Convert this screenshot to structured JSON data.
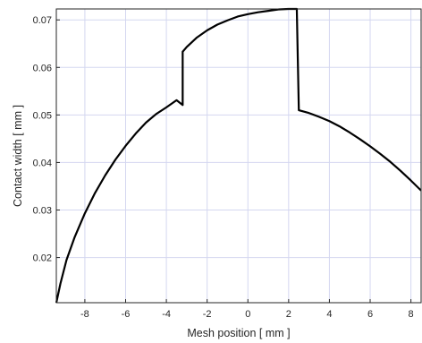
{
  "chart_data": {
    "type": "line",
    "title": "",
    "xlabel": "Mesh position [ mm ]",
    "ylabel": "Contact width  [ mm ]",
    "xlim": [
      -9.4,
      8.5
    ],
    "ylim": [
      0.0105,
      0.0723
    ],
    "grid": true,
    "x_ticks": [
      -8,
      -6,
      -4,
      -2,
      0,
      2,
      4,
      6,
      8
    ],
    "x_tick_labels": [
      "-8",
      "-6",
      "-4",
      "-2",
      "0",
      "2",
      "4",
      "6",
      "8"
    ],
    "y_ticks": [
      0.02,
      0.03,
      0.04,
      0.05,
      0.06,
      0.07
    ],
    "y_tick_labels": [
      "0.02",
      "0.03",
      "0.04",
      "0.05",
      "0.06",
      "0.07"
    ],
    "series": [
      {
        "color": "#000000",
        "x": [
          -9.4,
          -9.2,
          -8.9,
          -8.5,
          -8.0,
          -7.5,
          -7.0,
          -6.5,
          -6.0,
          -5.5,
          -5.0,
          -4.5,
          -4.0,
          -3.5,
          -3.2,
          -3.2,
          -3.0,
          -2.5,
          -2.0,
          -1.5,
          -1.0,
          -0.5,
          0.0,
          0.5,
          1.0,
          1.5,
          2.0,
          2.4,
          2.5,
          3.0,
          3.5,
          4.0,
          4.5,
          5.0,
          5.5,
          6.0,
          6.5,
          7.0,
          7.5,
          8.0,
          8.5
        ],
        "y": [
          0.0105,
          0.0145,
          0.0195,
          0.0243,
          0.0293,
          0.0336,
          0.0373,
          0.0406,
          0.0435,
          0.0461,
          0.0484,
          0.0502,
          0.0516,
          0.0531,
          0.0521,
          0.0633,
          0.0643,
          0.0663,
          0.0678,
          0.069,
          0.0699,
          0.0707,
          0.0712,
          0.0716,
          0.0719,
          0.0722,
          0.0723,
          0.0723,
          0.051,
          0.0504,
          0.0496,
          0.0487,
          0.0476,
          0.0463,
          0.0449,
          0.0434,
          0.0418,
          0.0401,
          0.0382,
          0.0362,
          0.0341
        ]
      }
    ]
  }
}
